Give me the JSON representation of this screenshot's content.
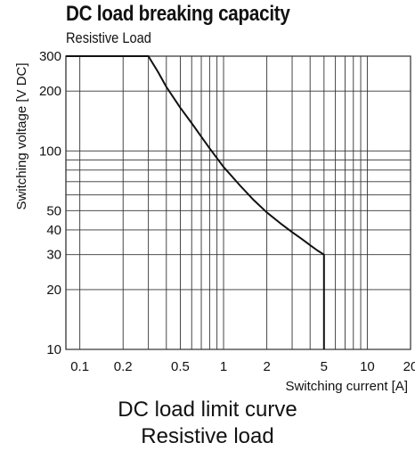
{
  "chart_data": {
    "type": "line",
    "title": "DC load breaking capacity",
    "subtitle": "Resistive Load",
    "xlabel": "Switching current [A]",
    "ylabel": "Switching voltage [V DC]",
    "x_scale": "log",
    "y_scale": "log",
    "xlim": [
      0.08,
      20
    ],
    "ylim": [
      10,
      300
    ],
    "x_ticks": [
      {
        "value": 0.1,
        "label": "0.1"
      },
      {
        "value": 0.2,
        "label": "0.2"
      },
      {
        "value": 0.5,
        "label": "0.5"
      },
      {
        "value": 1,
        "label": "1"
      },
      {
        "value": 2,
        "label": "2"
      },
      {
        "value": 5,
        "label": "5"
      },
      {
        "value": 10,
        "label": "10"
      },
      {
        "value": 20,
        "label": "20"
      }
    ],
    "y_ticks": [
      {
        "value": 10,
        "label": "10"
      },
      {
        "value": 20,
        "label": "20"
      },
      {
        "value": 30,
        "label": "30"
      },
      {
        "value": 40,
        "label": "40"
      },
      {
        "value": 50,
        "label": "50"
      },
      {
        "value": 100,
        "label": "100"
      },
      {
        "value": 200,
        "label": "200"
      },
      {
        "value": 300,
        "label": "300"
      }
    ],
    "x_grid": [
      0.1,
      0.2,
      0.3,
      0.4,
      0.5,
      0.6,
      0.7,
      0.8,
      0.9,
      1,
      2,
      3,
      4,
      5,
      6,
      7,
      8,
      9,
      10,
      20
    ],
    "y_grid": [
      10,
      20,
      30,
      40,
      50,
      60,
      70,
      80,
      90,
      100,
      200,
      300
    ],
    "grid": true,
    "series": [
      {
        "x": [
          0.08,
          0.3,
          0.35,
          0.4,
          0.5,
          0.6,
          0.7,
          0.8,
          1.0,
          1.3,
          1.6,
          2,
          2.5,
          3,
          3.5,
          4,
          4.5,
          5,
          5
        ],
        "y": [
          300,
          300,
          250,
          210,
          165,
          138,
          118,
          103,
          83,
          67,
          57,
          49,
          43,
          39,
          36,
          33.5,
          31.5,
          30,
          10
        ]
      }
    ]
  },
  "captions": {
    "line1": "DC load limit curve",
    "line2": "Resistive load"
  }
}
